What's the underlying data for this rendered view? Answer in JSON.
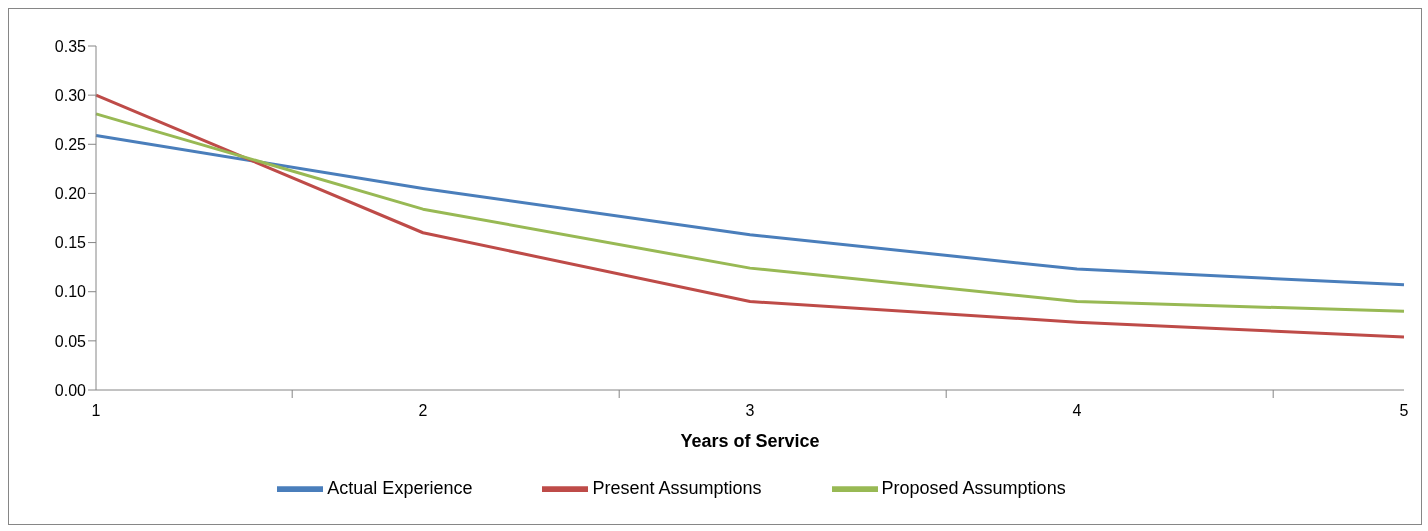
{
  "chart_data": {
    "type": "line",
    "xlabel": "Years of Service",
    "categories": [
      "1",
      "2",
      "3",
      "4",
      "5"
    ],
    "series": [
      {
        "name": "Actual Experience",
        "color": "#4a7ebb",
        "values": [
          0.259,
          0.205,
          0.158,
          0.123,
          0.107
        ]
      },
      {
        "name": "Present Assumptions",
        "color": "#be4b48",
        "values": [
          0.3,
          0.16,
          0.09,
          0.069,
          0.054
        ]
      },
      {
        "name": "Proposed Assumptions",
        "color": "#98b954",
        "values": [
          0.281,
          0.184,
          0.124,
          0.09,
          0.08
        ]
      }
    ],
    "ylim": [
      0,
      0.35
    ],
    "yticks": [
      {
        "value": 0,
        "label": "0.00"
      },
      {
        "value": 0.05,
        "label": "0.05"
      },
      {
        "value": 0.1,
        "label": "0.10"
      },
      {
        "value": 0.15,
        "label": "0.15"
      },
      {
        "value": 0.2,
        "label": "0.20"
      },
      {
        "value": 0.25,
        "label": "0.25"
      },
      {
        "value": 0.3,
        "label": "0.30"
      },
      {
        "value": 0.35,
        "label": "0.35"
      }
    ],
    "grid": false,
    "legend": "bottom",
    "marker": "none",
    "line_style": "solid"
  }
}
